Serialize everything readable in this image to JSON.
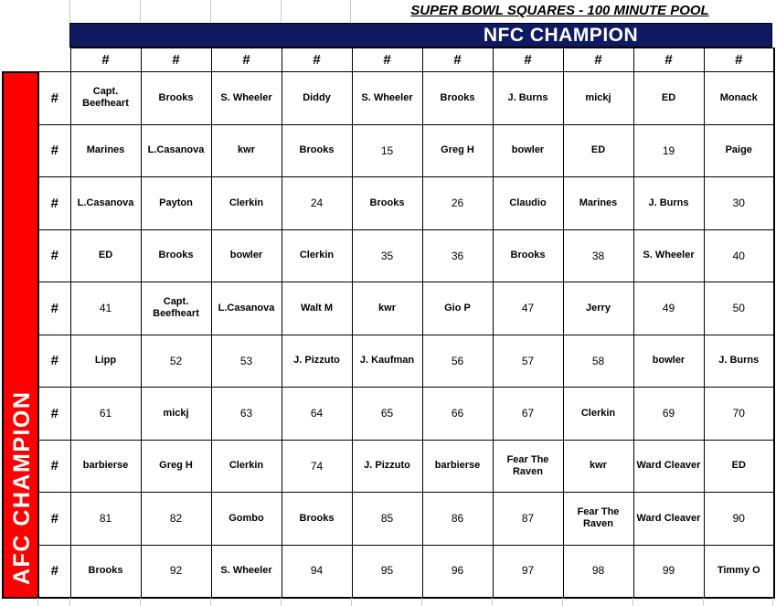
{
  "title": "SUPER BOWL SQUARES - 100 MINUTE POOL",
  "nfc_label": "NFC CHAMPION",
  "afc_label": "AFC CHAMPION",
  "colors": {
    "nfc_bg": "#101a63",
    "afc_bg": "#ff0000",
    "cell_border": "#000000",
    "faint_gridline": "#c8c8c8"
  },
  "grid": {
    "col_headers": [
      "#",
      "#",
      "#",
      "#",
      "#",
      "#",
      "#",
      "#",
      "#",
      "#"
    ],
    "row_headers": [
      "#",
      "#",
      "#",
      "#",
      "#",
      "#",
      "#",
      "#",
      "#",
      "#"
    ],
    "rows": [
      [
        "Capt. Beefheart",
        "Brooks",
        "S. Wheeler",
        "Diddy",
        "S. Wheeler",
        "Brooks",
        "J. Burns",
        "mickj",
        "ED",
        "Monack"
      ],
      [
        "Marines",
        "L.Casanova",
        "kwr",
        "Brooks",
        "15",
        "Greg H",
        "bowler",
        "ED",
        "19",
        "Paige"
      ],
      [
        "L.Casanova",
        "Payton",
        "Clerkin",
        "24",
        "Brooks",
        "26",
        "Claudio",
        "Marines",
        "J. Burns",
        "30"
      ],
      [
        "ED",
        "Brooks",
        "bowler",
        "Clerkin",
        "35",
        "36",
        "Brooks",
        "38",
        "S. Wheeler",
        "40"
      ],
      [
        "41",
        "Capt. Beefheart",
        "L.Casanova",
        "Walt M",
        "kwr",
        "Gio P",
        "47",
        "Jerry",
        "49",
        "50"
      ],
      [
        "Lipp",
        "52",
        "53",
        "J. Pizzuto",
        "J. Kaufman",
        "56",
        "57",
        "58",
        "bowler",
        "J. Burns"
      ],
      [
        "61",
        "mickj",
        "63",
        "64",
        "65",
        "66",
        "67",
        "Clerkin",
        "69",
        "70"
      ],
      [
        "barbierse",
        "Greg H",
        "Clerkin",
        "74",
        "J. Pizzuto",
        "barbierse",
        "Fear The Raven",
        "kwr",
        "Ward Cleaver",
        "ED"
      ],
      [
        "81",
        "82",
        "Gombo",
        "Brooks",
        "85",
        "86",
        "87",
        "Fear The Raven",
        "Ward Cleaver",
        "90"
      ],
      [
        "Brooks",
        "92",
        "S. Wheeler",
        "94",
        "95",
        "96",
        "97",
        "98",
        "99",
        "Timmy O"
      ]
    ]
  }
}
